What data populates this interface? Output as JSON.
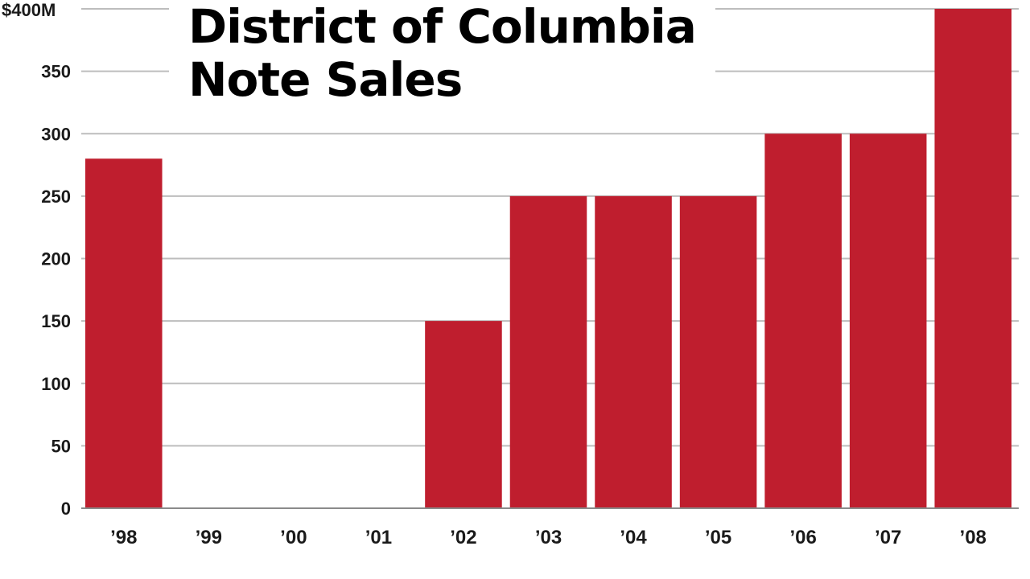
{
  "colors": {
    "bar": "#bf1e2e",
    "grid": "#bdbdbd",
    "axis": "#8a8a8a",
    "text": "#1a1a1a"
  },
  "chart_data": {
    "type": "bar",
    "title_lines": [
      "District of Columbia",
      "Note Sales"
    ],
    "categories": [
      "’98",
      "’99",
      "’00",
      "’01",
      "’02",
      "’03",
      "’04",
      "’05",
      "’06",
      "’07",
      "’08"
    ],
    "values": [
      280,
      0,
      0,
      0,
      150,
      250,
      250,
      250,
      300,
      300,
      400
    ],
    "ylim": [
      0,
      400
    ],
    "yticks": [
      0,
      50,
      100,
      150,
      200,
      250,
      300,
      350,
      400
    ],
    "ytick_labels": [
      "0",
      "50",
      "100",
      "150",
      "200",
      "250",
      "300",
      "350",
      "$400M"
    ],
    "xlabel": "",
    "ylabel": "",
    "grid": true,
    "legend": "none"
  }
}
